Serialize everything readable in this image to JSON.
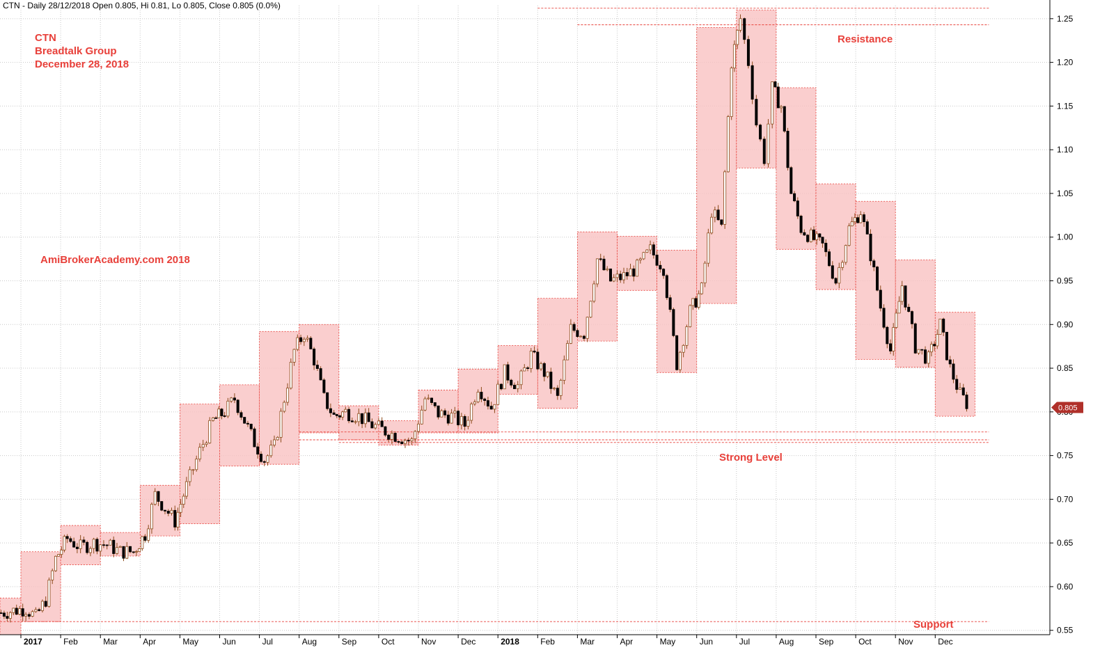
{
  "header": {
    "title": "CTN - Daily 28/12/2018 Open 0.805, Hi 0.81, Lo 0.805, Close 0.805 (0.0%)"
  },
  "annotations": {
    "ticker": "CTN",
    "company": "Breadtalk Group",
    "date": "December 28, 2018",
    "watermark": "AmiBrokerAcademy.com  2018",
    "resistance": "Resistance",
    "strong_level": "Strong Level",
    "support": "Support"
  },
  "colors": {
    "candle": "#000000",
    "wick": "#8b4a1a",
    "box_fill": "#f9c2c2",
    "box_border": "#e8403a",
    "level_line": "#e8403a",
    "grid": "#c8c8c8",
    "price_tag": "#b0302a"
  },
  "chart_data": {
    "type": "candlestick",
    "title": "CTN - Daily 28/12/2018",
    "ylim": [
      0.545,
      1.265
    ],
    "y_ticks": [
      0.55,
      0.6,
      0.65,
      0.7,
      0.75,
      0.8,
      0.85,
      0.9,
      0.95,
      1.0,
      1.05,
      1.1,
      1.15,
      1.2,
      1.25
    ],
    "x_labels": [
      {
        "label": "2017",
        "date": "2017-01"
      },
      {
        "label": "Feb",
        "date": "2017-02"
      },
      {
        "label": "Mar",
        "date": "2017-03"
      },
      {
        "label": "Apr",
        "date": "2017-04"
      },
      {
        "label": "May",
        "date": "2017-05"
      },
      {
        "label": "Jun",
        "date": "2017-06"
      },
      {
        "label": "Jul",
        "date": "2017-07"
      },
      {
        "label": "Aug",
        "date": "2017-08"
      },
      {
        "label": "Sep",
        "date": "2017-09"
      },
      {
        "label": "Oct",
        "date": "2017-10"
      },
      {
        "label": "Nov",
        "date": "2017-11"
      },
      {
        "label": "Dec",
        "date": "2017-12"
      },
      {
        "label": "2018",
        "date": "2018-01"
      },
      {
        "label": "Feb",
        "date": "2018-02"
      },
      {
        "label": "Mar",
        "date": "2018-03"
      },
      {
        "label": "Apr",
        "date": "2018-04"
      },
      {
        "label": "May",
        "date": "2018-05"
      },
      {
        "label": "Jun",
        "date": "2018-06"
      },
      {
        "label": "Jul",
        "date": "2018-07"
      },
      {
        "label": "Aug",
        "date": "2018-08"
      },
      {
        "label": "Sep",
        "date": "2018-09"
      },
      {
        "label": "Oct",
        "date": "2018-10"
      },
      {
        "label": "Nov",
        "date": "2018-11"
      },
      {
        "label": "Dec",
        "date": "2018-12"
      }
    ],
    "monthly_ranges": [
      {
        "month": "2016-12",
        "high": 0.587,
        "low": 0.545
      },
      {
        "month": "2017-01",
        "high": 0.64,
        "low": 0.56
      },
      {
        "month": "2017-02",
        "high": 0.67,
        "low": 0.625
      },
      {
        "month": "2017-03",
        "high": 0.662,
        "low": 0.635
      },
      {
        "month": "2017-04",
        "high": 0.716,
        "low": 0.658
      },
      {
        "month": "2017-05",
        "high": 0.809,
        "low": 0.672
      },
      {
        "month": "2017-06",
        "high": 0.831,
        "low": 0.738
      },
      {
        "month": "2017-07",
        "high": 0.892,
        "low": 0.74
      },
      {
        "month": "2017-08",
        "high": 0.9,
        "low": 0.776
      },
      {
        "month": "2017-09",
        "high": 0.807,
        "low": 0.768
      },
      {
        "month": "2017-10",
        "high": 0.79,
        "low": 0.762
      },
      {
        "month": "2017-11",
        "high": 0.825,
        "low": 0.776
      },
      {
        "month": "2017-12",
        "high": 0.849,
        "low": 0.776
      },
      {
        "month": "2018-01",
        "high": 0.876,
        "low": 0.82
      },
      {
        "month": "2018-02",
        "high": 0.93,
        "low": 0.804
      },
      {
        "month": "2018-03",
        "high": 1.006,
        "low": 0.881
      },
      {
        "month": "2018-04",
        "high": 1.001,
        "low": 0.939
      },
      {
        "month": "2018-05",
        "high": 0.985,
        "low": 0.845
      },
      {
        "month": "2018-06",
        "high": 1.24,
        "low": 0.924
      },
      {
        "month": "2018-07",
        "high": 1.26,
        "low": 1.079
      },
      {
        "month": "2018-08",
        "high": 1.171,
        "low": 0.986
      },
      {
        "month": "2018-09",
        "high": 1.061,
        "low": 0.94
      },
      {
        "month": "2018-10",
        "high": 1.041,
        "low": 0.86
      },
      {
        "month": "2018-11",
        "high": 0.974,
        "low": 0.851
      },
      {
        "month": "2018-12",
        "high": 0.914,
        "low": 0.795
      }
    ],
    "close_path": [
      [
        "2016-12",
        0.57
      ],
      [
        "2017-01",
        0.575
      ],
      [
        "2017-01",
        0.565
      ],
      [
        "2017-01",
        0.585
      ],
      [
        "2017-01",
        0.632
      ],
      [
        "2017-02",
        0.655
      ],
      [
        "2017-02",
        0.645
      ],
      [
        "2017-02",
        0.65
      ],
      [
        "2017-03",
        0.648
      ],
      [
        "2017-03",
        0.64
      ],
      [
        "2017-03",
        0.64
      ],
      [
        "2017-04",
        0.66
      ],
      [
        "2017-04",
        0.705
      ],
      [
        "2017-04",
        0.69
      ],
      [
        "2017-04",
        0.675
      ],
      [
        "2017-05",
        0.715
      ],
      [
        "2017-05",
        0.755
      ],
      [
        "2017-05",
        0.79
      ],
      [
        "2017-06",
        0.8
      ],
      [
        "2017-06",
        0.815
      ],
      [
        "2017-06",
        0.79
      ],
      [
        "2017-06",
        0.765
      ],
      [
        "2017-07",
        0.745
      ],
      [
        "2017-07",
        0.76
      ],
      [
        "2017-07",
        0.815
      ],
      [
        "2017-07",
        0.87
      ],
      [
        "2017-08",
        0.89
      ],
      [
        "2017-08",
        0.86
      ],
      [
        "2017-08",
        0.815
      ],
      [
        "2017-08",
        0.795
      ],
      [
        "2017-09",
        0.8
      ],
      [
        "2017-09",
        0.795
      ],
      [
        "2017-09",
        0.785
      ],
      [
        "2017-10",
        0.778
      ],
      [
        "2017-10",
        0.772
      ],
      [
        "2017-10",
        0.766
      ],
      [
        "2017-11",
        0.815
      ],
      [
        "2017-11",
        0.798
      ],
      [
        "2017-11",
        0.795
      ],
      [
        "2017-12",
        0.785
      ],
      [
        "2017-12",
        0.83
      ],
      [
        "2017-12",
        0.805
      ],
      [
        "2018-01",
        0.845
      ],
      [
        "2018-01",
        0.83
      ],
      [
        "2018-01",
        0.865
      ],
      [
        "2018-02",
        0.845
      ],
      [
        "2018-02",
        0.815
      ],
      [
        "2018-02",
        0.895
      ],
      [
        "2018-03",
        0.89
      ],
      [
        "2018-03",
        0.975
      ],
      [
        "2018-03",
        0.95
      ],
      [
        "2018-04",
        0.955
      ],
      [
        "2018-04",
        0.965
      ],
      [
        "2018-04",
        0.985
      ],
      [
        "2018-05",
        0.965
      ],
      [
        "2018-05",
        0.855
      ],
      [
        "2018-05",
        0.915
      ],
      [
        "2018-06",
        0.94
      ],
      [
        "2018-06",
        1.03
      ],
      [
        "2018-06",
        1.01
      ],
      [
        "2018-06",
        1.2
      ],
      [
        "2018-07",
        1.25
      ],
      [
        "2018-07",
        1.2
      ],
      [
        "2018-07",
        1.13
      ],
      [
        "2018-07",
        1.09
      ],
      [
        "2018-07",
        1.17
      ],
      [
        "2018-08",
        1.15
      ],
      [
        "2018-08",
        1.05
      ],
      [
        "2018-08",
        1.01
      ],
      [
        "2018-08",
        1.0
      ],
      [
        "2018-09",
        0.99
      ],
      [
        "2018-09",
        0.95
      ],
      [
        "2018-09",
        1.01
      ],
      [
        "2018-10",
        1.03
      ],
      [
        "2018-10",
        0.98
      ],
      [
        "2018-10",
        0.92
      ],
      [
        "2018-10",
        0.87
      ],
      [
        "2018-11",
        0.945
      ],
      [
        "2018-11",
        0.875
      ],
      [
        "2018-11",
        0.86
      ],
      [
        "2018-12",
        0.9
      ],
      [
        "2018-12",
        0.85
      ],
      [
        "2018-12",
        0.82
      ],
      [
        "2018-12",
        0.805
      ]
    ],
    "levels": [
      {
        "name": "resistance-upper",
        "price": 1.262,
        "from": "2018-02",
        "to": "2018-12"
      },
      {
        "name": "resistance-lower",
        "price": 1.243,
        "from": "2018-03",
        "to": "2018-12"
      },
      {
        "name": "strong-level-1",
        "price": 0.777,
        "from": "2017-08",
        "to": "2018-12"
      },
      {
        "name": "strong-level-2",
        "price": 0.768,
        "from": "2017-08",
        "to": "2018-12"
      },
      {
        "name": "strong-level-3",
        "price": 0.765,
        "from": "2017-09",
        "to": "2018-12"
      },
      {
        "name": "support",
        "price": 0.56,
        "from": "2016-12",
        "to": "2018-12"
      }
    ],
    "last_price": 0.805,
    "last_price_label": "0.805",
    "grid": true
  }
}
